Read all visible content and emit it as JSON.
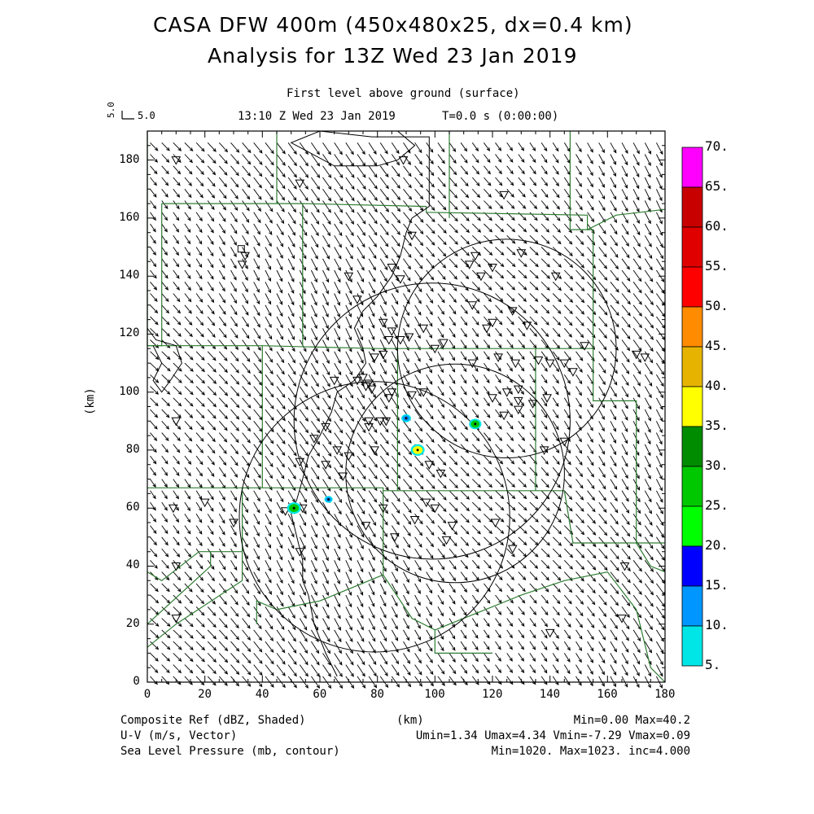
{
  "title_line1": "CASA DFW 400m (450x480x25, dx=0.4 km)",
  "title_line2": "Analysis for 13Z Wed 23 Jan 2019",
  "level_label": "First level above ground (surface)",
  "time_label": "13:10 Z Wed 23 Jan 2019",
  "time_offset": "T=0.0 s (0:00:00)",
  "ref_vector_label": "5.0",
  "ref_vector_value": "5.0",
  "x_axis_label": "(km)",
  "y_axis_label": "(km)",
  "x_ticks": [
    "0",
    "20",
    "40",
    "60",
    "80",
    "100",
    "120",
    "140",
    "160",
    "180"
  ],
  "y_ticks": [
    "0",
    "20",
    "40",
    "60",
    "80",
    "100",
    "120",
    "140",
    "160",
    "180"
  ],
  "footer": {
    "field1_name": "Composite Ref (dBZ, Shaded)",
    "field1_stats": "Min=0.00 Max=40.2",
    "field2_name": "U-V (m/s, Vector)",
    "field2_stats": "Umin=1.34 Umax=4.34 Vmin=-7.29 Vmax=0.09",
    "field3_name": "Sea Level Pressure (mb, contour)",
    "field3_stats": "Min=1020. Max=1023. inc=4.000"
  },
  "colorbar": {
    "labels": [
      "70.",
      "65.",
      "60.",
      "55.",
      "50.",
      "45.",
      "40.",
      "35.",
      "30.",
      "25.",
      "20.",
      "15.",
      "10.",
      "5."
    ],
    "colors": [
      "#ff00ff",
      "#c80000",
      "#e00000",
      "#ff0000",
      "#ff8c00",
      "#e6b400",
      "#ffff00",
      "#008c00",
      "#00c800",
      "#00ff00",
      "#0000ff",
      "#0096ff",
      "#00e6e6"
    ]
  },
  "chart_data": {
    "type": "map",
    "x_range_km": [
      0,
      180
    ],
    "y_range_km": [
      0,
      190
    ],
    "radar_rings": [
      {
        "cx": 125,
        "cy": 115,
        "r": 38
      },
      {
        "cx": 99,
        "cy": 90,
        "r": 48
      },
      {
        "cx": 107,
        "cy": 72,
        "r": 38
      },
      {
        "cx": 79,
        "cy": 57,
        "r": 47
      }
    ],
    "reflectivity_echoes": [
      {
        "x": 51,
        "y": 60,
        "r": 2.0,
        "color": "#00c800"
      },
      {
        "x": 63,
        "y": 63,
        "r": 1.2,
        "color": "#0096ff"
      },
      {
        "x": 90,
        "y": 91,
        "r": 1.4,
        "color": "#0096ff"
      },
      {
        "x": 94,
        "y": 80,
        "r": 2.0,
        "color": "#ffff00"
      },
      {
        "x": 114,
        "y": 89,
        "r": 1.8,
        "color": "#00c800"
      }
    ],
    "vector_field": {
      "u_mean": 2.8,
      "v_mean": -4.0,
      "spacing_km": 4
    }
  }
}
